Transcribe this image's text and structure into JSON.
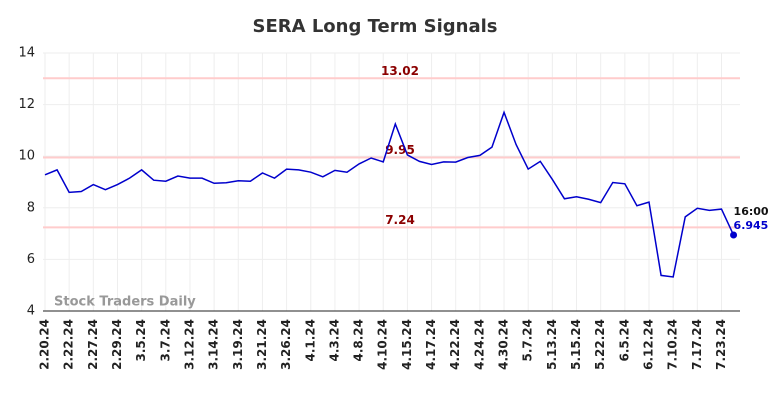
{
  "chart_data": {
    "type": "line",
    "title": "SERA Long Term Signals",
    "categories": [
      "2.20.24",
      null,
      "2.22.24",
      null,
      "2.27.24",
      null,
      "2.29.24",
      null,
      "3.5.24",
      null,
      "3.7.24",
      null,
      "3.12.24",
      null,
      "3.14.24",
      null,
      "3.19.24",
      null,
      "3.21.24",
      null,
      "3.26.24",
      null,
      "4.1.24",
      null,
      "4.3.24",
      null,
      "4.8.24",
      null,
      "4.10.24",
      null,
      "4.15.24",
      null,
      "4.17.24",
      null,
      "4.22.24",
      null,
      "4.24.24",
      null,
      "4.30.24",
      null,
      "5.7.24",
      null,
      "5.13.24",
      null,
      "5.15.24",
      null,
      "5.22.24",
      null,
      "6.5.24",
      null,
      "6.12.24",
      null,
      "7.10.24",
      null,
      "7.17.24",
      null,
      "7.23.24",
      null
    ],
    "series": [
      {
        "name": "SERA",
        "color": "#0000cc",
        "values": [
          9.28,
          9.47,
          8.6,
          8.63,
          8.9,
          8.7,
          8.9,
          9.15,
          9.47,
          9.07,
          9.03,
          9.23,
          9.15,
          9.15,
          8.95,
          8.97,
          9.05,
          9.03,
          9.35,
          9.15,
          9.5,
          9.47,
          9.38,
          9.2,
          9.45,
          9.38,
          9.7,
          9.93,
          9.78,
          11.25,
          10.05,
          9.8,
          9.68,
          9.78,
          9.77,
          9.95,
          10.03,
          10.35,
          11.7,
          10.45,
          9.5,
          9.8,
          9.1,
          8.35,
          8.43,
          8.33,
          8.2,
          8.98,
          8.93,
          8.08,
          8.22,
          5.38,
          5.32,
          7.65,
          7.98,
          7.9,
          7.95,
          6.945
        ]
      }
    ],
    "hlines": [
      13.02,
      9.95,
      7.24
    ],
    "hline_color": "#ffcccc",
    "hline_label_color": "#8b0000",
    "last_label": "16:00",
    "watermark": "Stock Traders Daily",
    "ylim": [
      4,
      14
    ],
    "yticks": [
      4,
      6,
      8,
      10,
      12,
      14
    ],
    "grid": true
  }
}
